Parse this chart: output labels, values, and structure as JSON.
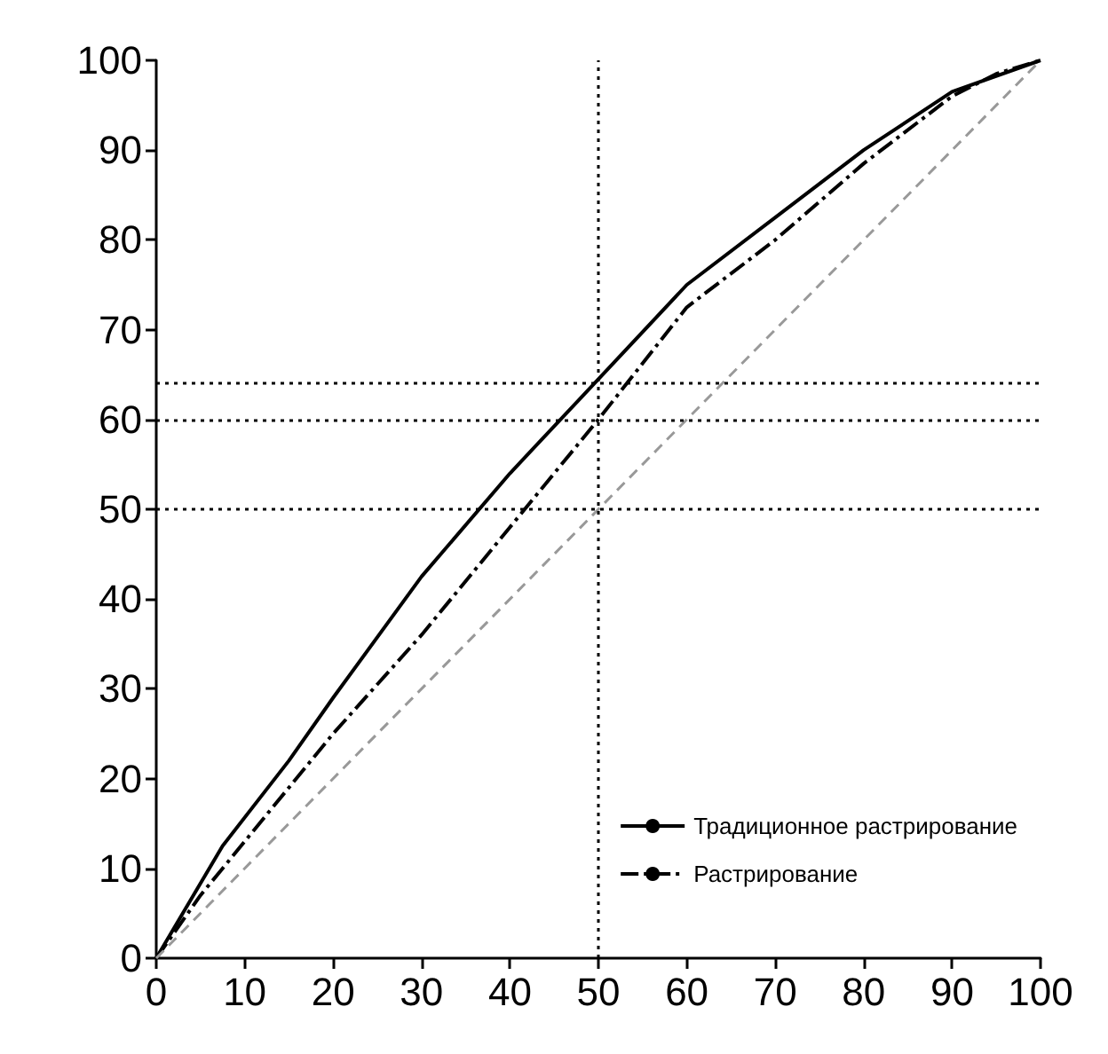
{
  "chart_data": {
    "type": "line",
    "xlim": [
      0,
      100
    ],
    "ylim": [
      0,
      100
    ],
    "xticks": [
      0,
      10,
      20,
      30,
      40,
      50,
      60,
      70,
      80,
      90,
      100
    ],
    "yticks": [
      0,
      10,
      20,
      30,
      40,
      50,
      60,
      70,
      80,
      90,
      100
    ],
    "grid": false,
    "legend": "bottom right",
    "marker": "none",
    "series": [
      {
        "name": "Традиционное растрирование",
        "color": "#000000",
        "line_style": "solid",
        "x": [
          0,
          7.5,
          15,
          20,
          30,
          40,
          50,
          60,
          70,
          80,
          90,
          100
        ],
        "values": [
          0,
          12.5,
          22,
          29,
          42.5,
          54,
          64.5,
          75,
          82.5,
          90,
          96.5,
          100
        ]
      },
      {
        "name": "Растрирование",
        "color": "#000000",
        "line_style": "dashdot",
        "x": [
          0,
          5,
          10,
          20,
          30,
          40,
          50,
          60,
          70,
          80,
          90,
          95,
          100
        ],
        "values": [
          0,
          7,
          13,
          25,
          36,
          48,
          60,
          72.5,
          80,
          88.5,
          96,
          98.5,
          100
        ]
      },
      {
        "color": "#999999",
        "line_style": "dashed",
        "x": [
          0,
          100
        ],
        "values": [
          0,
          100
        ]
      }
    ],
    "ref_lines": [
      {
        "axis": "x",
        "value": 50,
        "label": null,
        "line_style": "dotted",
        "color": "#000000"
      },
      {
        "axis": "y",
        "value": 64,
        "label": null,
        "line_style": "dotted",
        "color": "#000000"
      },
      {
        "axis": "y",
        "value": 60,
        "label": null,
        "line_style": "dotted",
        "color": "#000000"
      },
      {
        "axis": "y",
        "value": 50,
        "label": null,
        "line_style": "dotted",
        "color": "#000000"
      }
    ]
  }
}
